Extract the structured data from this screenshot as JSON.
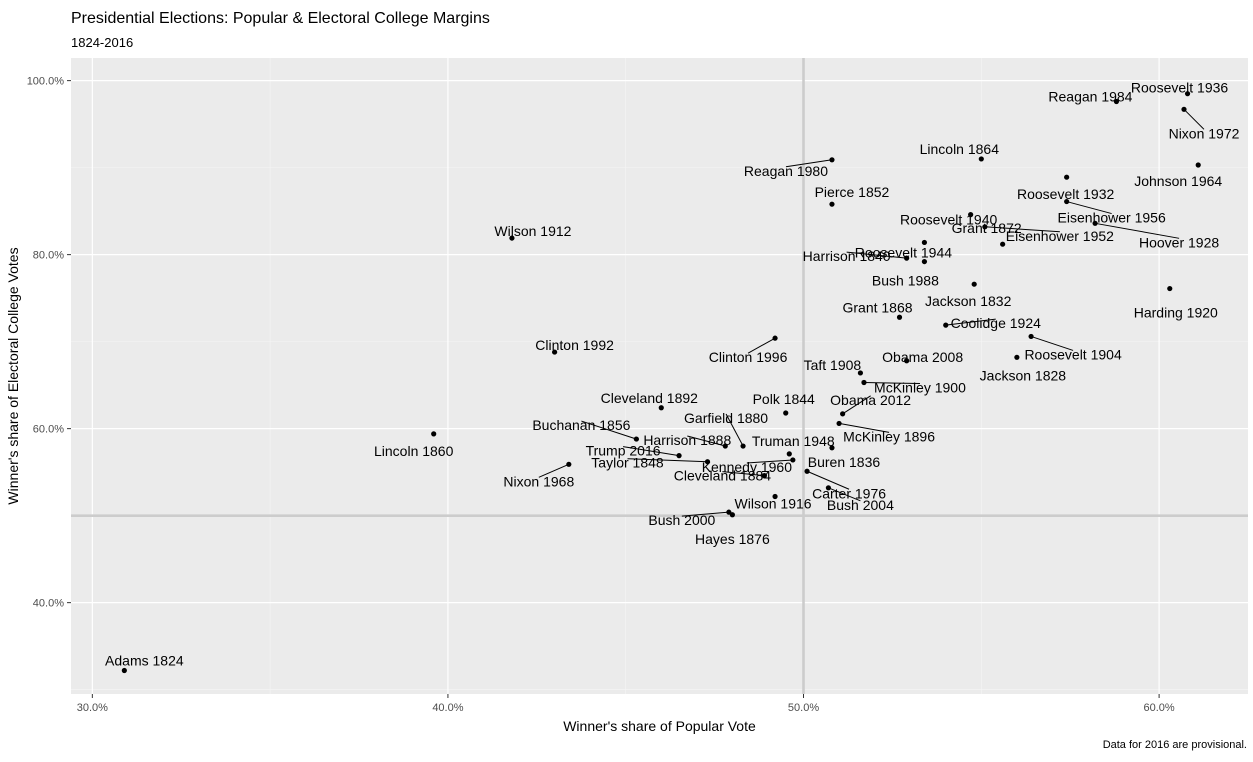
{
  "chart_data": {
    "type": "scatter",
    "title": "Presidential Elections: Popular & Electoral College Margins",
    "subtitle": "1824-2016",
    "caption": "Data for 2016 are provisional.",
    "xlabel": "Winner's share of Popular Vote",
    "ylabel": "Winner's share of Electoral College Votes",
    "xlim": [
      0.294,
      0.625
    ],
    "ylim": [
      0.295,
      1.026
    ],
    "x_ticks": [
      0.3,
      0.4,
      0.5,
      0.6
    ],
    "x_tick_labels": [
      "30.0%",
      "40.0%",
      "50.0%",
      "60.0%"
    ],
    "y_ticks": [
      0.4,
      0.6,
      0.8,
      1.0
    ],
    "y_tick_labels": [
      "40.0%",
      "60.0%",
      "80.0%",
      "100.0%"
    ],
    "reference_lines": {
      "x": 0.5,
      "y": 0.5
    },
    "grid": true,
    "points": [
      {
        "label": "Adams 1824",
        "x": 0.309,
        "y": 0.322
      },
      {
        "label": "Jackson 1828",
        "x": 0.56,
        "y": 0.682
      },
      {
        "label": "Jackson 1832",
        "x": 0.548,
        "y": 0.766
      },
      {
        "label": "Buren 1836",
        "x": 0.508,
        "y": 0.578
      },
      {
        "label": "Harrison 1840",
        "x": 0.529,
        "y": 0.796
      },
      {
        "label": "Polk 1844",
        "x": 0.495,
        "y": 0.618
      },
      {
        "label": "Taylor 1848",
        "x": 0.473,
        "y": 0.562
      },
      {
        "label": "Pierce 1852",
        "x": 0.508,
        "y": 0.858
      },
      {
        "label": "Buchanan 1856",
        "x": 0.453,
        "y": 0.588
      },
      {
        "label": "Lincoln 1860",
        "x": 0.396,
        "y": 0.594
      },
      {
        "label": "Lincoln 1864",
        "x": 0.55,
        "y": 0.91
      },
      {
        "label": "Grant 1868",
        "x": 0.527,
        "y": 0.728
      },
      {
        "label": "Grant 1872",
        "x": 0.556,
        "y": 0.812
      },
      {
        "label": "Hayes 1876",
        "x": 0.48,
        "y": 0.501
      },
      {
        "label": "Garfield 1880",
        "x": 0.483,
        "y": 0.58
      },
      {
        "label": "Cleveland 1884",
        "x": 0.489,
        "y": 0.546
      },
      {
        "label": "Harrison 1888",
        "x": 0.478,
        "y": 0.58
      },
      {
        "label": "Cleveland 1892",
        "x": 0.46,
        "y": 0.624
      },
      {
        "label": "McKinley 1896",
        "x": 0.51,
        "y": 0.606
      },
      {
        "label": "McKinley 1900",
        "x": 0.517,
        "y": 0.653
      },
      {
        "label": "Roosevelt 1904",
        "x": 0.564,
        "y": 0.706
      },
      {
        "label": "Taft 1908",
        "x": 0.516,
        "y": 0.664
      },
      {
        "label": "Wilson 1912",
        "x": 0.418,
        "y": 0.819
      },
      {
        "label": "Wilson 1916",
        "x": 0.492,
        "y": 0.522
      },
      {
        "label": "Harding 1920",
        "x": 0.603,
        "y": 0.761
      },
      {
        "label": "Coolidge 1924",
        "x": 0.54,
        "y": 0.719
      },
      {
        "label": "Hoover 1928",
        "x": 0.582,
        "y": 0.836
      },
      {
        "label": "Roosevelt 1932",
        "x": 0.574,
        "y": 0.889
      },
      {
        "label": "Roosevelt 1936",
        "x": 0.608,
        "y": 0.985
      },
      {
        "label": "Roosevelt 1940",
        "x": 0.547,
        "y": 0.846
      },
      {
        "label": "Roosevelt 1944",
        "x": 0.534,
        "y": 0.814
      },
      {
        "label": "Truman 1948",
        "x": 0.496,
        "y": 0.571
      },
      {
        "label": "Eisenhower 1952",
        "x": 0.551,
        "y": 0.832
      },
      {
        "label": "Eisenhower 1956",
        "x": 0.574,
        "y": 0.861
      },
      {
        "label": "Kennedy 1960",
        "x": 0.497,
        "y": 0.564
      },
      {
        "label": "Johnson 1964",
        "x": 0.611,
        "y": 0.903
      },
      {
        "label": "Nixon 1968",
        "x": 0.434,
        "y": 0.559
      },
      {
        "label": "Nixon 1972",
        "x": 0.607,
        "y": 0.967
      },
      {
        "label": "Carter 1976",
        "x": 0.501,
        "y": 0.551
      },
      {
        "label": "Reagan 1980",
        "x": 0.508,
        "y": 0.909
      },
      {
        "label": "Reagan 1984",
        "x": 0.588,
        "y": 0.976
      },
      {
        "label": "Bush 1988",
        "x": 0.534,
        "y": 0.792
      },
      {
        "label": "Clinton 1992",
        "x": 0.43,
        "y": 0.688
      },
      {
        "label": "Clinton 1996",
        "x": 0.492,
        "y": 0.704
      },
      {
        "label": "Bush 2000",
        "x": 0.479,
        "y": 0.504
      },
      {
        "label": "Bush 2004",
        "x": 0.507,
        "y": 0.532
      },
      {
        "label": "Obama 2008",
        "x": 0.529,
        "y": 0.678
      },
      {
        "label": "Obama 2012",
        "x": 0.511,
        "y": 0.617
      },
      {
        "label": "Trump 2016",
        "x": 0.465,
        "y": 0.569
      }
    ]
  }
}
